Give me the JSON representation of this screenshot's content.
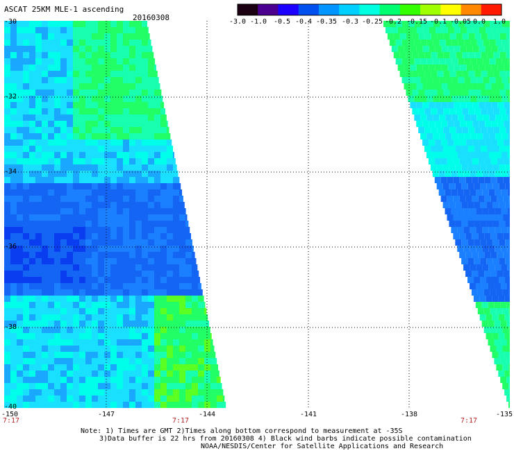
{
  "title": "ASCAT 25KM MLE-1 ascending",
  "date": "20160308",
  "colorbar": {
    "ticks": [
      "-3.0",
      "-1.0",
      "-0.5",
      "-0.4",
      "-0.35",
      "-0.3",
      "-0.25",
      "-0.2",
      "-0.15",
      "-0.1",
      "-0.05",
      "0.0",
      "1.0"
    ],
    "colors": [
      "#1a0010",
      "#4b0090",
      "#1b00ff",
      "#0050f0",
      "#0095ff",
      "#00d0ff",
      "#00ffe0",
      "#00ff70",
      "#33ff00",
      "#a0ff00",
      "#ffff00",
      "#ff8800",
      "#ff1a00"
    ]
  },
  "axes": {
    "lat_labels": [
      "-30",
      "-32",
      "-34",
      "-36",
      "-38",
      "-40"
    ],
    "lon_labels": [
      "-150",
      "-147",
      "-144",
      "-141",
      "-138",
      "-135"
    ],
    "time_labels": [
      "7:17",
      "7:17",
      "7:17"
    ]
  },
  "notes": [
    "Note: 1) Times are GMT 2)Times along bottom correspond to measurement at -35S",
    "3)Data buffer is 22 hrs from 20160308 4) Black wind barbs indicate possible contamination",
    "NOAA/NESDIS/Center for Satellite Applications and Research"
  ]
}
